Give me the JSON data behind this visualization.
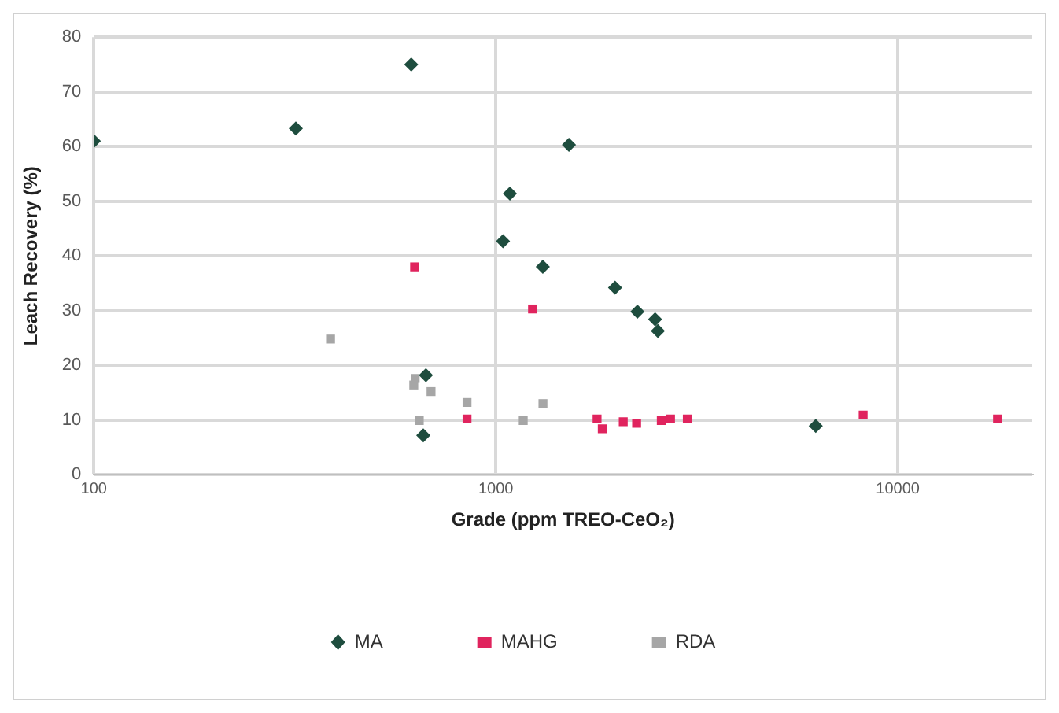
{
  "chart_data": {
    "type": "scatter",
    "xlabel": "Grade (ppm TREO-CeO₂)",
    "ylabel": "Leach Recovery (%)",
    "log": "x",
    "xlim": [
      100,
      21600
    ],
    "xticks": [
      100,
      1000,
      10000
    ],
    "ylim": [
      0,
      80
    ],
    "yticks": [
      0,
      10,
      20,
      30,
      40,
      50,
      60,
      70,
      80
    ],
    "grid": true,
    "legend": "bottom",
    "series": [
      {
        "name": "MA",
        "color": "#1e4d3e",
        "marker": "diamond",
        "x": [
          100,
          318,
          616,
          1520,
          1084,
          1042,
          1309,
          1980,
          2250,
          2490,
          2530,
          6250,
          670,
          660
        ],
        "values": [
          61,
          63.3,
          75,
          60.3,
          51.4,
          42.7,
          38,
          34.2,
          29.8,
          28.4,
          26.3,
          8.9,
          18.2,
          7.2
        ]
      },
      {
        "name": "MAHG",
        "color": "#e0245e",
        "marker": "square",
        "x": [
          628,
          848,
          1234,
          1786,
          1840,
          2075,
          2240,
          2580,
          2720,
          2995,
          8200,
          17700
        ],
        "values": [
          38,
          10.2,
          30.3,
          10.2,
          8.4,
          9.7,
          9.4,
          9.9,
          10.2,
          10.2,
          10.9,
          10.2
        ]
      },
      {
        "name": "RDA",
        "color": "#a6a6a6",
        "marker": "square",
        "x": [
          388,
          630,
          625,
          690,
          645,
          848,
          1170,
          1310
        ],
        "values": [
          24.8,
          17.6,
          16.4,
          15.2,
          9.9,
          13.2,
          9.9,
          13
        ]
      }
    ]
  }
}
